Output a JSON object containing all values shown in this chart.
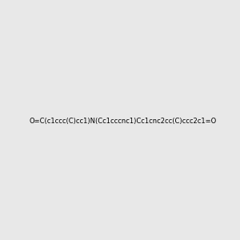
{
  "smiles": "O=C(c1ccc(C)cc1)N(Cc1cccnc1)Cc1cnc2cc(C)ccc2c1=O",
  "title": "",
  "bg_color": "#e8e8e8",
  "bond_color": "#1a1a1a",
  "n_color": "#2222cc",
  "o_color": "#cc2200",
  "figsize": [
    3.0,
    3.0
  ],
  "dpi": 100
}
